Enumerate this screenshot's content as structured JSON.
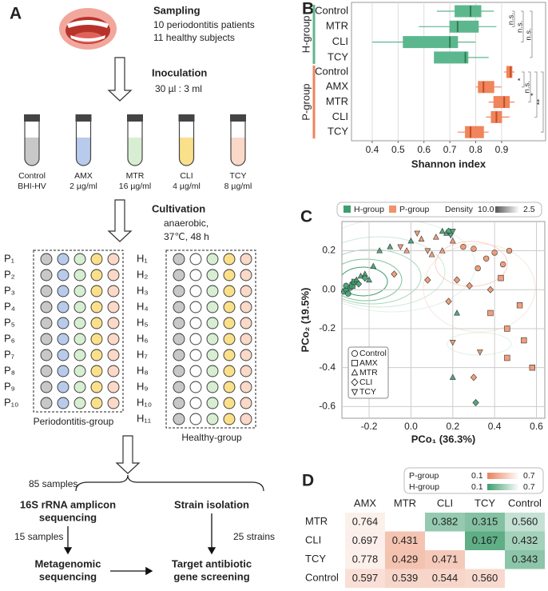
{
  "panel_labels": [
    "A",
    "B",
    "C",
    "D"
  ],
  "sampling": {
    "title": "Sampling",
    "lines": [
      "10 periodontitis patients",
      "11 healthy subjects"
    ]
  },
  "inoculation": {
    "title": "Inoculation",
    "ratio": "30 µl : 3 ml"
  },
  "tubes": [
    {
      "name": "Control",
      "dose": "BHI-HV",
      "color": "#c8c8c8"
    },
    {
      "name": "AMX",
      "dose": "2 µg/ml",
      "color": "#b9cbec"
    },
    {
      "name": "MTR",
      "dose": "16 µg/ml",
      "color": "#d8eed2"
    },
    {
      "name": "CLI",
      "dose": "4 µg/ml",
      "color": "#fbe08c"
    },
    {
      "name": "TCY",
      "dose": "8 µg/ml",
      "color": "#fbd8c8"
    }
  ],
  "cultivation": {
    "title": "Cultivation",
    "lines": [
      "anaerobic,",
      "37℃, 48 h"
    ]
  },
  "plates": [
    {
      "label": "Periodontitis-group",
      "rows": [
        "P₁",
        "P₂",
        "P₃",
        "P₄",
        "P₅",
        "P₆",
        "P₇",
        "P₈",
        "P₉",
        "P₁₀"
      ]
    },
    {
      "label": "Healthy-group",
      "rows": [
        "H₁",
        "H₂",
        "H₃",
        "H₄",
        "H₅",
        "H₆",
        "H₇",
        "H₈",
        "H₉",
        "H₁₀",
        "H₁₁"
      ]
    }
  ],
  "workflow": {
    "samples": "85 samples",
    "amplicon": [
      "16S rRNA amplicon",
      "sequencing"
    ],
    "isolation": "Strain isolation",
    "subset": "15 samples",
    "strains": "25 strains",
    "metagenomic": [
      "Metagenomic",
      "sequencing"
    ],
    "screening": [
      "Target antibiotic",
      "gene screening"
    ]
  },
  "chart_data": [
    {
      "type": "box",
      "x_label": "Shannon index",
      "xlim": [
        0.32,
        1.07
      ],
      "xticks": [
        0.4,
        0.5,
        0.6,
        0.7,
        0.8,
        0.9
      ],
      "grid": true,
      "series": [
        {
          "name": "H-group",
          "color": "#5db78e",
          "median_color": "#2f7d57",
          "categories": [
            "Control",
            "MTR",
            "CLI",
            "TCY"
          ],
          "whisker_low": [
            0.65,
            0.58,
            0.4,
            0.64
          ],
          "q1": [
            0.72,
            0.7,
            0.52,
            0.64
          ],
          "median": [
            0.78,
            0.73,
            0.7,
            0.76
          ],
          "q3": [
            0.82,
            0.81,
            0.73,
            0.77
          ],
          "whisker_high": [
            0.87,
            0.88,
            0.8,
            0.85
          ]
        },
        {
          "name": "P-group",
          "color": "#f0845a",
          "median_color": "#c04e24",
          "categories": [
            "Control",
            "AMX",
            "MTR",
            "CLI",
            "TCY"
          ],
          "whisker_low": [
            0.91,
            0.8,
            0.85,
            0.84,
            0.73
          ],
          "q1": [
            0.92,
            0.81,
            0.87,
            0.86,
            0.76
          ],
          "median": [
            0.935,
            0.83,
            0.91,
            0.88,
            0.78
          ],
          "q3": [
            0.94,
            0.87,
            0.93,
            0.9,
            0.83
          ],
          "whisker_high": [
            0.95,
            0.9,
            0.95,
            0.93,
            0.85
          ]
        }
      ],
      "annotations": [
        {
          "text": "n.s.",
          "series": 0,
          "from": 0,
          "to": 1
        },
        {
          "text": "n.s.",
          "series": 0,
          "from": 0,
          "to": 2
        },
        {
          "text": "n.s.",
          "series": 0,
          "from": 0,
          "to": 3
        },
        {
          "text": "*",
          "series": 1,
          "from": 0,
          "to": 1
        },
        {
          "text": "n.s.",
          "series": 1,
          "from": 0,
          "to": 2
        },
        {
          "text": "*",
          "series": 1,
          "from": 0,
          "to": 3
        },
        {
          "text": "**",
          "series": 1,
          "from": 0,
          "to": 4
        }
      ]
    },
    {
      "type": "scatter",
      "x_label": "PCo₁ (36.3%)",
      "y_label": "PCo₂ (19.5%)",
      "xlim": [
        -0.33,
        0.64
      ],
      "ylim": [
        -0.66,
        0.35
      ],
      "xticks": [
        -0.2,
        {
          "value": 0,
          "label": "0.0"
        },
        0.2,
        0.4,
        0.6
      ],
      "yticks": [
        -0.6,
        -0.4,
        -0.2,
        {
          "value": 0,
          "label": "0.0"
        },
        0.2
      ],
      "grid": true,
      "legend": "top",
      "density_legend": {
        "label": "Density",
        "max": "10.0",
        "min": "2.5"
      },
      "markers": [
        {
          "name": "Control",
          "shape": "circle"
        },
        {
          "name": "AMX",
          "shape": "square"
        },
        {
          "name": "MTR",
          "shape": "triangle"
        },
        {
          "name": "CLI",
          "shape": "diamond"
        },
        {
          "name": "TCY",
          "shape": "triangle-down"
        }
      ],
      "series": [
        {
          "name": "H-group",
          "color": "#3f9e70",
          "x": [
            -0.32,
            -0.31,
            -0.31,
            -0.3,
            -0.29,
            -0.28,
            -0.28,
            -0.27,
            -0.26,
            -0.24,
            -0.22,
            -0.2,
            -0.18,
            -0.15,
            -0.1,
            0.0,
            0.15,
            0.17,
            0.22,
            0.2,
            -0.25,
            -0.22,
            0.18,
            0.31,
            0.19,
            0.2
          ],
          "y": [
            -0.01,
            0.0,
            0.02,
            -0.02,
            0.01,
            0.03,
            0.02,
            0.04,
            0.05,
            0.07,
            0.08,
            0.05,
            0.12,
            0.2,
            0.22,
            0.25,
            0.3,
            0.29,
            -0.12,
            -0.45,
            0.03,
            0.06,
            0.3,
            -0.58,
            0.28,
            0.3
          ],
          "treatment": [
            "Control",
            "Control",
            "Control",
            "Control",
            "Control",
            "Control",
            "AMX",
            "AMX",
            "MTR",
            "MTR",
            "MTR",
            "MTR",
            "MTR",
            "MTR",
            "MTR",
            "MTR",
            "MTR",
            "MTR",
            "MTR",
            "MTR",
            "CLI",
            "CLI",
            "CLI",
            "CLI",
            "TCY",
            "TCY"
          ]
        },
        {
          "name": "P-group",
          "color": "#f0936b",
          "x": [
            0.3,
            0.36,
            0.4,
            0.44,
            0.47,
            0.32,
            0.25,
            0.38,
            0.46,
            0.54,
            0.58,
            0.46,
            0.52,
            0.43,
            -0.02,
            0.05,
            0.1,
            0.12,
            0.2,
            0.15,
            -0.08,
            0.08,
            0.22,
            0.28,
            0.18,
            0.3,
            0.38,
            -0.05,
            0.03,
            0.2,
            0.33,
            0.08
          ],
          "y": [
            0.21,
            0.16,
            0.19,
            0.13,
            0.2,
            0.11,
            0.22,
            -0.12,
            -0.2,
            -0.26,
            -0.4,
            -0.35,
            -0.08,
            0.06,
            0.2,
            0.26,
            0.18,
            0.27,
            0.25,
            0.2,
            0.08,
            0.05,
            0.05,
            0.02,
            -0.06,
            -0.45,
            0.0,
            0.22,
            0.29,
            -0.27,
            -0.32,
            0.2
          ],
          "treatment": [
            "Control",
            "Control",
            "Control",
            "Control",
            "Control",
            "Control",
            "Control",
            "AMX",
            "AMX",
            "AMX",
            "AMX",
            "AMX",
            "AMX",
            "AMX",
            "MTR",
            "MTR",
            "MTR",
            "MTR",
            "MTR",
            "MTR",
            "CLI",
            "CLI",
            "CLI",
            "CLI",
            "CLI",
            "CLI",
            "CLI",
            "TCY",
            "TCY",
            "TCY",
            "TCY",
            "TCY"
          ]
        }
      ]
    }
  ],
  "table": {
    "legend": [
      {
        "name": "P-group",
        "min": 0.1,
        "max": 0.7,
        "color": "#e8825c"
      },
      {
        "name": "H-group",
        "min": 0.1,
        "max": 0.7,
        "color": "#3e9e6e"
      }
    ],
    "columns": [
      "AMX",
      "MTR",
      "CLI",
      "TCY",
      "Control"
    ],
    "rows": [
      {
        "label": "MTR",
        "cells": [
          "0.764",
          null,
          "0.382",
          "0.315",
          "0.560"
        ]
      },
      {
        "label": "CLI",
        "cells": [
          "0.697",
          "0.431",
          null,
          "0.167",
          "0.432"
        ]
      },
      {
        "label": "TCY",
        "cells": [
          "0.778",
          "0.429",
          "0.471",
          null,
          "0.343"
        ]
      },
      {
        "label": "Control",
        "cells": [
          "0.597",
          "0.539",
          "0.544",
          "0.560",
          null
        ]
      }
    ]
  }
}
